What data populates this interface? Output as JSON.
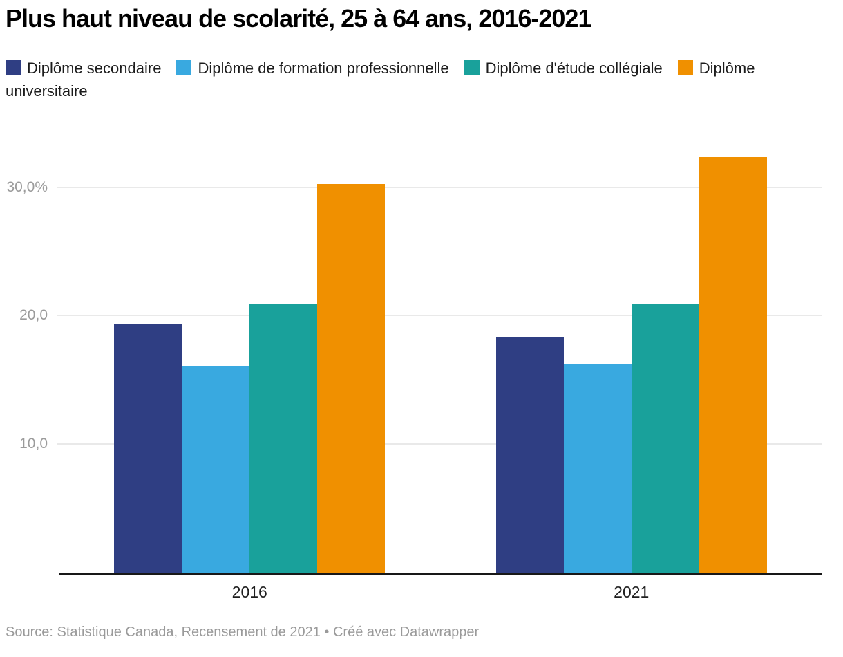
{
  "header": {
    "title": "Plus haut niveau de scolarité, 25 à 64 ans, 2016-2021"
  },
  "footer": {
    "text": "Source: Statistique Canada, Recensement de 2021 • Créé avec Datawrapper"
  },
  "colors": {
    "title": "#000000",
    "legend_text": "#1c1c1c",
    "gridline": "#e9e9e9",
    "axis_line": "#181818",
    "y_tick_label": "#9b9b9b",
    "x_axis_label": "#1f1f1f",
    "footer_text": "#9a9a9a",
    "background": "#ffffff"
  },
  "chart_data": {
    "type": "bar",
    "title": "Plus haut niveau de scolarité, 25 à 64 ans, 2016-2021",
    "categories": [
      "2016",
      "2021"
    ],
    "series": [
      {
        "name": "Diplôme secondaire",
        "color": "#2f3e83",
        "values": [
          19.4,
          18.4
        ]
      },
      {
        "name": "Diplôme de formation professionnelle",
        "color": "#39a9e0",
        "values": [
          16.1,
          16.3
        ]
      },
      {
        "name": "Diplôme d'étude collégiale",
        "color": "#19a19b",
        "values": [
          20.9,
          20.9
        ]
      },
      {
        "name": "Diplôme universitaire",
        "color": "#f09000",
        "values": [
          30.3,
          32.4
        ]
      }
    ],
    "xlabel": "",
    "ylabel": "",
    "ylim": [
      0,
      34.9
    ],
    "yticks": [
      {
        "value": 10,
        "label": "10,0"
      },
      {
        "value": 20,
        "label": "20,0"
      },
      {
        "value": 30,
        "label": "30,0%"
      }
    ],
    "grid": true,
    "legend_position": "top",
    "value_unit": "%"
  }
}
